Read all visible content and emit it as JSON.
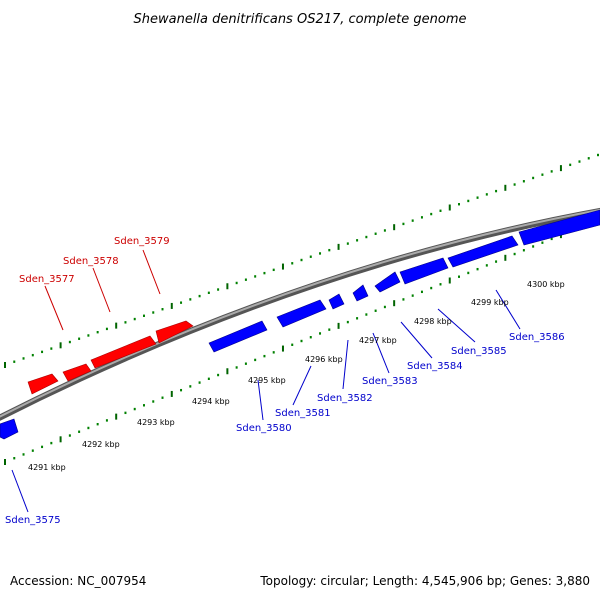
{
  "title": "Shewanella denitrificans OS217, complete genome",
  "footer": {
    "accession": "Accession: NC_007954",
    "summary": "Topology: circular; Length: 4,545,906 bp; Genes: 3,880"
  },
  "colors": {
    "forward_gene": "#ff0000",
    "reverse_gene": "#0000ff",
    "backbone": "#808080",
    "tick_minor": "#008000",
    "tick_major": "#006400",
    "label_forward": "#cc0000",
    "label_reverse": "#0000cc"
  },
  "kbp_labels": [
    "4291 kbp",
    "4292 kbp",
    "4293 kbp",
    "4294 kbp",
    "4295 kbp",
    "4296 kbp",
    "4297 kbp",
    "4298 kbp",
    "4299 kbp",
    "4300 kbp"
  ],
  "genes": [
    {
      "id": "Sden_3575",
      "strand": "reverse"
    },
    {
      "id": "Sden_3577",
      "strand": "forward"
    },
    {
      "id": "Sden_3578",
      "strand": "forward"
    },
    {
      "id": "Sden_3579",
      "strand": "forward"
    },
    {
      "id": "Sden_3580",
      "strand": "reverse"
    },
    {
      "id": "Sden_3581",
      "strand": "reverse"
    },
    {
      "id": "Sden_3582",
      "strand": "reverse"
    },
    {
      "id": "Sden_3583",
      "strand": "reverse"
    },
    {
      "id": "Sden_3584",
      "strand": "reverse"
    },
    {
      "id": "Sden_3585",
      "strand": "reverse"
    },
    {
      "id": "Sden_3586",
      "strand": "reverse"
    }
  ]
}
